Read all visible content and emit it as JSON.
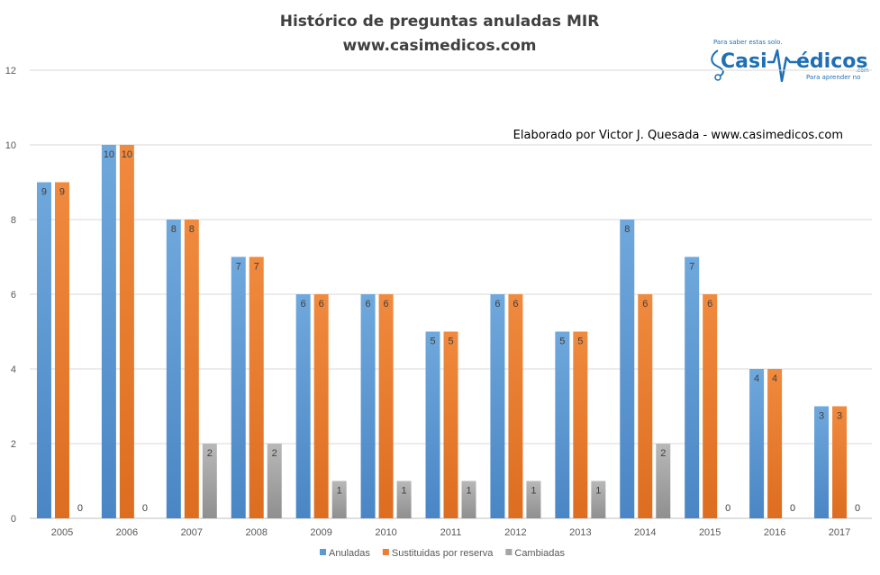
{
  "chart_data": {
    "type": "bar",
    "title": "Histórico  de  preguntas  anuladas  MIR",
    "subtitle": "www.casimedicos.com",
    "annotation": "Elaborado por Victor J. Quesada - www.casimedicos.com",
    "categories": [
      "2005",
      "2006",
      "2007",
      "2008",
      "2009",
      "2010",
      "2011",
      "2012",
      "2013",
      "2014",
      "2015",
      "2016",
      "2017"
    ],
    "series": [
      {
        "name": "Anuladas",
        "color": "#5B9BD5",
        "values": [
          9,
          10,
          8,
          7,
          6,
          6,
          5,
          6,
          5,
          8,
          7,
          4,
          3
        ]
      },
      {
        "name": "Sustituidas por reserva",
        "color": "#ED7D31",
        "values": [
          9,
          10,
          8,
          7,
          6,
          6,
          5,
          6,
          5,
          6,
          6,
          4,
          3
        ]
      },
      {
        "name": "Cambiadas",
        "color": "#A5A5A5",
        "values": [
          0,
          0,
          2,
          2,
          1,
          1,
          1,
          1,
          1,
          2,
          0,
          0,
          0
        ]
      }
    ],
    "ylim": [
      0,
      12
    ],
    "yticks": [
      0,
      2,
      4,
      6,
      8,
      10,
      12
    ],
    "grid": true,
    "data_labels": true,
    "legend_position": "bottom"
  },
  "logo": {
    "tagline_top": "Para saber estas solo.",
    "name_left": "Casi",
    "name_right": "édicos",
    "suffix": ".com",
    "tagline_bottom": "Para aprender no",
    "color": "#1f6fb5"
  }
}
